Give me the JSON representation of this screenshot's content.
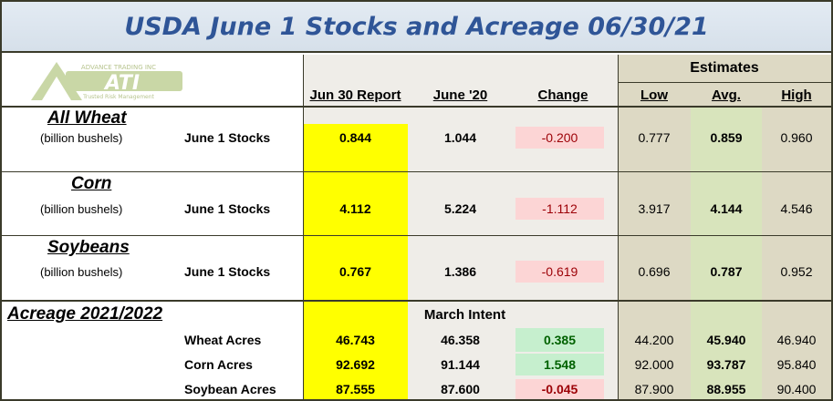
{
  "title": "USDA June 1 Stocks and Acreage 06/30/21",
  "logo": {
    "brand": "ATI",
    "tagline_top": "ADVANCE TRADING INC",
    "tagline_bottom": "Trusted Risk Management",
    "colors": {
      "fill": "#c9d7a6",
      "text": "#ffffff"
    }
  },
  "headers": {
    "jun30": "Jun 30 Report",
    "june20": "June '20",
    "change": "Change",
    "estimates": "Estimates",
    "low": "Low",
    "avg": "Avg.",
    "high": "High"
  },
  "stocks": [
    {
      "name": "All Wheat",
      "unit": "(billion bushels)",
      "label": "June 1 Stocks",
      "jun30": "0.844",
      "june20": "1.044",
      "change": "-0.200",
      "low": "0.777",
      "avg": "0.859",
      "high": "0.960"
    },
    {
      "name": "Corn",
      "unit": "(billion bushels)",
      "label": "June 1 Stocks",
      "jun30": "4.112",
      "june20": "5.224",
      "change": "-1.112",
      "low": "3.917",
      "avg": "4.144",
      "high": "4.546"
    },
    {
      "name": "Soybeans",
      "unit": "(billion bushels)",
      "label": "June 1 Stocks",
      "jun30": "0.767",
      "june20": "1.386",
      "change": "-0.619",
      "low": "0.696",
      "avg": "0.787",
      "high": "0.952"
    }
  ],
  "acreage": {
    "title": "Acreage 2021/2022",
    "sub_header": "March Intent",
    "rows": [
      {
        "label": "Wheat Acres",
        "jun30": "46.743",
        "june20": "46.358",
        "change": "0.385",
        "low": "44.200",
        "avg": "45.940",
        "high": "46.940"
      },
      {
        "label": "Corn Acres",
        "jun30": "92.692",
        "june20": "91.144",
        "change": "1.548",
        "low": "92.000",
        "avg": "93.787",
        "high": "95.840"
      },
      {
        "label": "Soybean Acres",
        "jun30": "87.555",
        "june20": "87.600",
        "change": "-0.045",
        "low": "87.900",
        "avg": "88.955",
        "high": "90.400"
      }
    ]
  },
  "colors": {
    "title_text": "#2f5597",
    "report_col": "#ffff00",
    "estimates_bg": "#ddd9c4",
    "avg_col": "#d8e4bc",
    "neg_bg": "#fcd5d5",
    "neg_text": "#9c0006",
    "pos_bg": "#c6efce",
    "pos_text": "#006100"
  }
}
